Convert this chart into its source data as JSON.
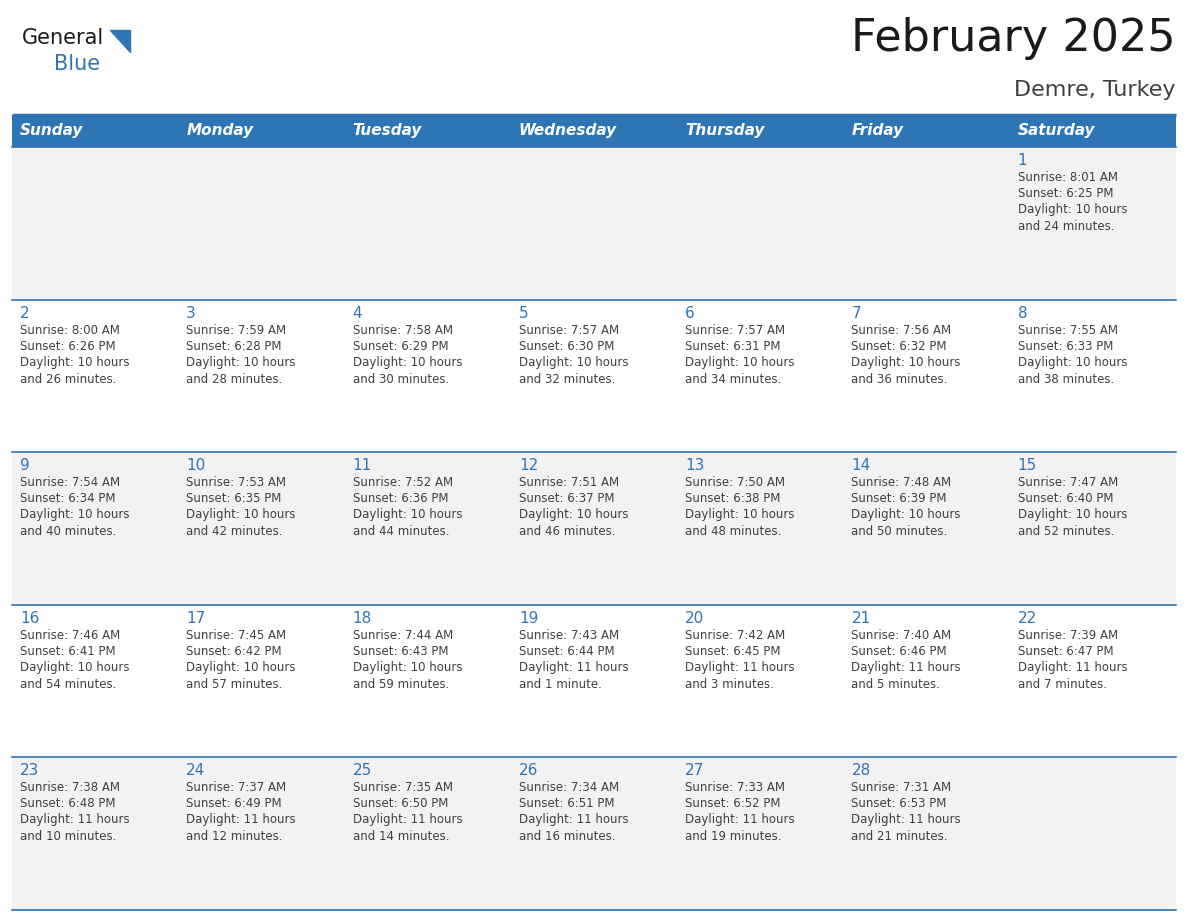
{
  "title": "February 2025",
  "subtitle": "Demre, Turkey",
  "header_bg": "#2E75B6",
  "header_text_color": "#FFFFFF",
  "cell_bg_odd": "#F2F2F2",
  "cell_bg_even": "#FFFFFF",
  "day_number_color": "#2E75B6",
  "cell_text_color": "#404040",
  "border_color": "#2E75B6",
  "days_of_week": [
    "Sunday",
    "Monday",
    "Tuesday",
    "Wednesday",
    "Thursday",
    "Friday",
    "Saturday"
  ],
  "calendar_data": [
    [
      null,
      null,
      null,
      null,
      null,
      null,
      {
        "day": "1",
        "sunrise": "Sunrise: 8:01 AM",
        "sunset": "Sunset: 6:25 PM",
        "daylight": "Daylight: 10 hours\nand 24 minutes."
      }
    ],
    [
      {
        "day": "2",
        "sunrise": "Sunrise: 8:00 AM",
        "sunset": "Sunset: 6:26 PM",
        "daylight": "Daylight: 10 hours\nand 26 minutes."
      },
      {
        "day": "3",
        "sunrise": "Sunrise: 7:59 AM",
        "sunset": "Sunset: 6:28 PM",
        "daylight": "Daylight: 10 hours\nand 28 minutes."
      },
      {
        "day": "4",
        "sunrise": "Sunrise: 7:58 AM",
        "sunset": "Sunset: 6:29 PM",
        "daylight": "Daylight: 10 hours\nand 30 minutes."
      },
      {
        "day": "5",
        "sunrise": "Sunrise: 7:57 AM",
        "sunset": "Sunset: 6:30 PM",
        "daylight": "Daylight: 10 hours\nand 32 minutes."
      },
      {
        "day": "6",
        "sunrise": "Sunrise: 7:57 AM",
        "sunset": "Sunset: 6:31 PM",
        "daylight": "Daylight: 10 hours\nand 34 minutes."
      },
      {
        "day": "7",
        "sunrise": "Sunrise: 7:56 AM",
        "sunset": "Sunset: 6:32 PM",
        "daylight": "Daylight: 10 hours\nand 36 minutes."
      },
      {
        "day": "8",
        "sunrise": "Sunrise: 7:55 AM",
        "sunset": "Sunset: 6:33 PM",
        "daylight": "Daylight: 10 hours\nand 38 minutes."
      }
    ],
    [
      {
        "day": "9",
        "sunrise": "Sunrise: 7:54 AM",
        "sunset": "Sunset: 6:34 PM",
        "daylight": "Daylight: 10 hours\nand 40 minutes."
      },
      {
        "day": "10",
        "sunrise": "Sunrise: 7:53 AM",
        "sunset": "Sunset: 6:35 PM",
        "daylight": "Daylight: 10 hours\nand 42 minutes."
      },
      {
        "day": "11",
        "sunrise": "Sunrise: 7:52 AM",
        "sunset": "Sunset: 6:36 PM",
        "daylight": "Daylight: 10 hours\nand 44 minutes."
      },
      {
        "day": "12",
        "sunrise": "Sunrise: 7:51 AM",
        "sunset": "Sunset: 6:37 PM",
        "daylight": "Daylight: 10 hours\nand 46 minutes."
      },
      {
        "day": "13",
        "sunrise": "Sunrise: 7:50 AM",
        "sunset": "Sunset: 6:38 PM",
        "daylight": "Daylight: 10 hours\nand 48 minutes."
      },
      {
        "day": "14",
        "sunrise": "Sunrise: 7:48 AM",
        "sunset": "Sunset: 6:39 PM",
        "daylight": "Daylight: 10 hours\nand 50 minutes."
      },
      {
        "day": "15",
        "sunrise": "Sunrise: 7:47 AM",
        "sunset": "Sunset: 6:40 PM",
        "daylight": "Daylight: 10 hours\nand 52 minutes."
      }
    ],
    [
      {
        "day": "16",
        "sunrise": "Sunrise: 7:46 AM",
        "sunset": "Sunset: 6:41 PM",
        "daylight": "Daylight: 10 hours\nand 54 minutes."
      },
      {
        "day": "17",
        "sunrise": "Sunrise: 7:45 AM",
        "sunset": "Sunset: 6:42 PM",
        "daylight": "Daylight: 10 hours\nand 57 minutes."
      },
      {
        "day": "18",
        "sunrise": "Sunrise: 7:44 AM",
        "sunset": "Sunset: 6:43 PM",
        "daylight": "Daylight: 10 hours\nand 59 minutes."
      },
      {
        "day": "19",
        "sunrise": "Sunrise: 7:43 AM",
        "sunset": "Sunset: 6:44 PM",
        "daylight": "Daylight: 11 hours\nand 1 minute."
      },
      {
        "day": "20",
        "sunrise": "Sunrise: 7:42 AM",
        "sunset": "Sunset: 6:45 PM",
        "daylight": "Daylight: 11 hours\nand 3 minutes."
      },
      {
        "day": "21",
        "sunrise": "Sunrise: 7:40 AM",
        "sunset": "Sunset: 6:46 PM",
        "daylight": "Daylight: 11 hours\nand 5 minutes."
      },
      {
        "day": "22",
        "sunrise": "Sunrise: 7:39 AM",
        "sunset": "Sunset: 6:47 PM",
        "daylight": "Daylight: 11 hours\nand 7 minutes."
      }
    ],
    [
      {
        "day": "23",
        "sunrise": "Sunrise: 7:38 AM",
        "sunset": "Sunset: 6:48 PM",
        "daylight": "Daylight: 11 hours\nand 10 minutes."
      },
      {
        "day": "24",
        "sunrise": "Sunrise: 7:37 AM",
        "sunset": "Sunset: 6:49 PM",
        "daylight": "Daylight: 11 hours\nand 12 minutes."
      },
      {
        "day": "25",
        "sunrise": "Sunrise: 7:35 AM",
        "sunset": "Sunset: 6:50 PM",
        "daylight": "Daylight: 11 hours\nand 14 minutes."
      },
      {
        "day": "26",
        "sunrise": "Sunrise: 7:34 AM",
        "sunset": "Sunset: 6:51 PM",
        "daylight": "Daylight: 11 hours\nand 16 minutes."
      },
      {
        "day": "27",
        "sunrise": "Sunrise: 7:33 AM",
        "sunset": "Sunset: 6:52 PM",
        "daylight": "Daylight: 11 hours\nand 19 minutes."
      },
      {
        "day": "28",
        "sunrise": "Sunrise: 7:31 AM",
        "sunset": "Sunset: 6:53 PM",
        "daylight": "Daylight: 11 hours\nand 21 minutes."
      },
      null
    ]
  ]
}
